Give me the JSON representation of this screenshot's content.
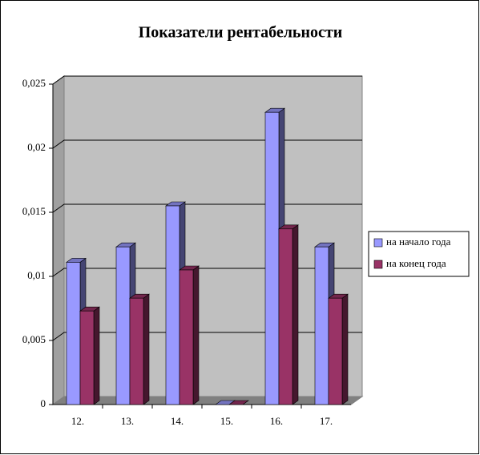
{
  "chart_data": {
    "type": "bar3d",
    "title": "Показатели рентабельности",
    "categories": [
      "12.",
      "13.",
      "14.",
      "15.",
      "16.",
      "17."
    ],
    "series": [
      {
        "name": "на начало года",
        "color": "#9999ff",
        "values": [
          0.0111,
          0.0123,
          0.0155,
          0,
          0.0228,
          0.0123
        ]
      },
      {
        "name": "на конец года",
        "color": "#993366",
        "values": [
          0.0073,
          0.0083,
          0.0105,
          0,
          0.0137,
          0.0083
        ]
      }
    ],
    "ylim": [
      0,
      0.025
    ],
    "yticks": [
      0,
      {
        "value": 0.005,
        "label": "0,005"
      },
      {
        "value": 0.01,
        "label": "0,01"
      },
      {
        "value": 0.015,
        "label": "0,015"
      },
      {
        "value": 0.02,
        "label": "0,02"
      },
      {
        "value": 0.025,
        "label": "0,025"
      }
    ],
    "grid": true,
    "legend": "right"
  }
}
